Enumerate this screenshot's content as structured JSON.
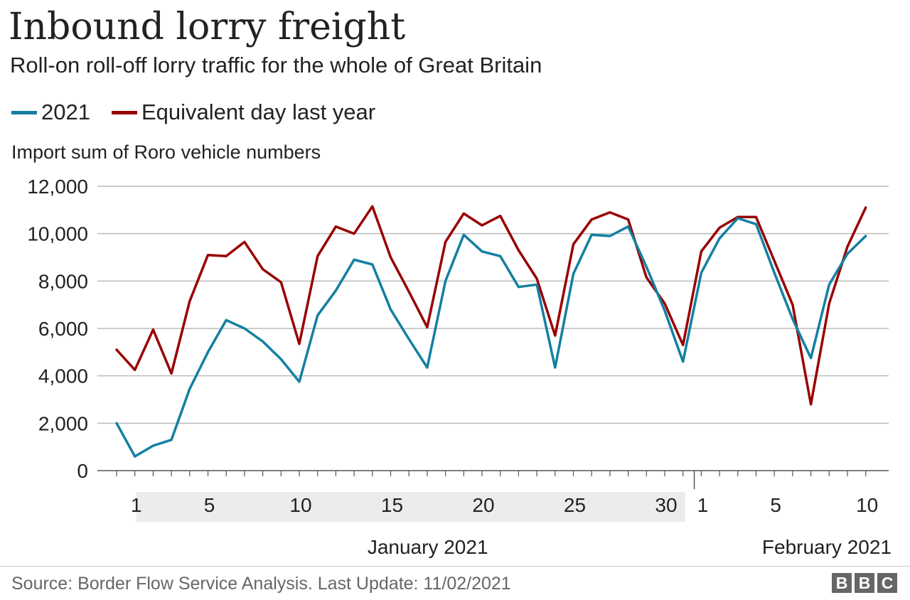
{
  "header": {
    "title": "Inbound lorry freight",
    "subtitle": "Roll-on roll-off lorry traffic for the whole of Great Britain",
    "y_axis_label": "Import sum of Roro vehicle numbers"
  },
  "footer": {
    "source": "Source: Border Flow Service Analysis. Last Update: 11/02/2021",
    "logo": [
      "B",
      "B",
      "C"
    ]
  },
  "colors": {
    "series_2021": "#1380a1",
    "series_last_year": "#990000",
    "grid": "#bbbbbb",
    "month_band": "#ececec"
  },
  "chart_data": {
    "type": "line",
    "title": "Inbound lorry freight",
    "subtitle": "Roll-on roll-off lorry traffic for the whole of Great Britain",
    "ylabel": "Import sum of Roro vehicle numbers",
    "ylim": [
      0,
      12000
    ],
    "yticks": [
      0,
      2000,
      4000,
      6000,
      8000,
      10000,
      12000
    ],
    "ytick_labels": [
      "0",
      "2,000",
      "4,000",
      "6,000",
      "8,000",
      "10,000",
      "12,000"
    ],
    "grid": true,
    "legend": "top-left",
    "x": [
      "2020-12-31",
      "2021-01-01",
      "2021-01-02",
      "2021-01-03",
      "2021-01-04",
      "2021-01-05",
      "2021-01-06",
      "2021-01-07",
      "2021-01-08",
      "2021-01-09",
      "2021-01-10",
      "2021-01-11",
      "2021-01-12",
      "2021-01-13",
      "2021-01-14",
      "2021-01-15",
      "2021-01-16",
      "2021-01-17",
      "2021-01-18",
      "2021-01-19",
      "2021-01-20",
      "2021-01-21",
      "2021-01-22",
      "2021-01-23",
      "2021-01-24",
      "2021-01-25",
      "2021-01-26",
      "2021-01-27",
      "2021-01-28",
      "2021-01-29",
      "2021-01-30",
      "2021-01-31",
      "2021-02-01",
      "2021-02-02",
      "2021-02-03",
      "2021-02-04",
      "2021-02-05",
      "2021-02-06",
      "2021-02-07",
      "2021-02-08",
      "2021-02-09",
      "2021-02-10"
    ],
    "xtick_labels": [
      {
        "date": "2021-01-01",
        "label": "1"
      },
      {
        "date": "2021-01-05",
        "label": "5"
      },
      {
        "date": "2021-01-10",
        "label": "10"
      },
      {
        "date": "2021-01-15",
        "label": "15"
      },
      {
        "date": "2021-01-20",
        "label": "20"
      },
      {
        "date": "2021-01-25",
        "label": "25"
      },
      {
        "date": "2021-01-30",
        "label": "30"
      },
      {
        "date": "2021-02-01",
        "label": "1"
      },
      {
        "date": "2021-02-05",
        "label": "5"
      },
      {
        "date": "2021-02-10",
        "label": "10"
      }
    ],
    "month_labels": [
      {
        "label": "January 2021",
        "start": "2021-01-01",
        "end": "2021-01-31"
      },
      {
        "label": "February 2021",
        "start": "2021-02-01",
        "end": "2021-02-10"
      }
    ],
    "series": [
      {
        "name": "2021",
        "color": "#1380a1",
        "values": [
          2000,
          600,
          1050,
          1300,
          3450,
          5000,
          6350,
          6000,
          5450,
          4700,
          3750,
          6550,
          7600,
          8900,
          8700,
          6800,
          5550,
          4350,
          8000,
          9950,
          9250,
          9050,
          7750,
          7850,
          4350,
          8300,
          9950,
          9900,
          10300,
          8600,
          6750,
          4600,
          8350,
          9800,
          10650,
          10400,
          8350,
          6400,
          4750,
          7850,
          9150,
          9900
        ]
      },
      {
        "name": "Equivalent day last year",
        "color": "#990000",
        "values": [
          5100,
          4250,
          5950,
          4100,
          7150,
          9100,
          9050,
          9650,
          8500,
          7950,
          5350,
          9050,
          10300,
          10000,
          11150,
          9000,
          7550,
          6050,
          9650,
          10850,
          10350,
          10750,
          9300,
          8100,
          5700,
          9550,
          10600,
          10900,
          10600,
          8150,
          7050,
          5300,
          9250,
          10250,
          10700,
          10700,
          8850,
          7000,
          2800,
          7050,
          9450,
          11100
        ]
      }
    ]
  }
}
